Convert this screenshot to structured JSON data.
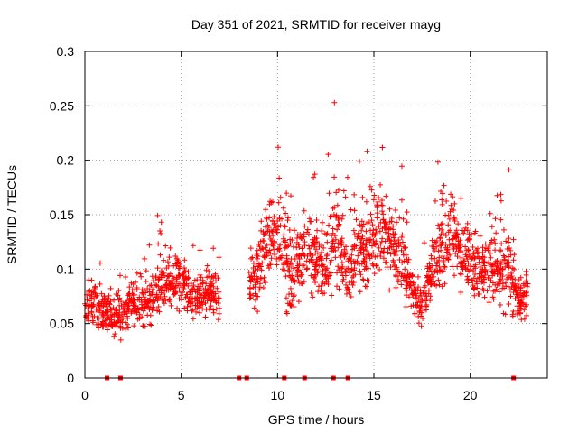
{
  "chart_data": {
    "type": "scatter",
    "title": "Day 351 of 2021, SRMTID for receiver mayg",
    "xlabel": "GPS time / hours",
    "ylabel": "SRMTID / TECUs",
    "xlim": [
      0,
      24
    ],
    "ylim": [
      0,
      0.3
    ],
    "xticks": [
      0,
      5,
      10,
      15,
      20
    ],
    "xtick_labels": [
      "0",
      "5",
      "10",
      "15",
      "20"
    ],
    "yticks": [
      0,
      0.05,
      0.1,
      0.15,
      0.2,
      0.25,
      0.3
    ],
    "ytick_labels": [
      "0",
      "0.05",
      "0.1",
      "0.15",
      "0.2",
      "0.25",
      "0.3"
    ],
    "grid": true,
    "marker": "+",
    "color": "#ff0000",
    "envelope": {
      "x": [
        0,
        0.5,
        1,
        1.5,
        2,
        2.5,
        3,
        3.5,
        4,
        4.5,
        5,
        5.5,
        6,
        6.5,
        7,
        7.5,
        8,
        8.5,
        9,
        9.5,
        10,
        10.5,
        11,
        11.5,
        12,
        12.5,
        13,
        13.5,
        14,
        14.5,
        15,
        15.5,
        16,
        16.5,
        17,
        17.5,
        18,
        18.5,
        19,
        19.5,
        20,
        20.5,
        21,
        21.5,
        22,
        22.5,
        23
      ],
      "center": [
        0.065,
        0.07,
        0.06,
        0.055,
        0.06,
        0.07,
        0.065,
        0.07,
        0.09,
        0.085,
        0.09,
        0.07,
        0.075,
        0.08,
        0.075,
        null,
        null,
        0.085,
        0.095,
        0.13,
        0.14,
        0.1,
        0.1,
        0.12,
        0.11,
        0.1,
        0.14,
        0.1,
        0.11,
        0.12,
        0.13,
        0.14,
        0.12,
        0.11,
        0.08,
        0.06,
        0.1,
        0.12,
        0.13,
        0.115,
        0.11,
        0.1,
        0.1,
        0.1,
        0.1,
        0.07,
        0.08
      ],
      "spread": [
        0.025,
        0.03,
        0.02,
        0.025,
        0.025,
        0.025,
        0.025,
        0.03,
        0.035,
        0.03,
        0.035,
        0.035,
        0.03,
        0.03,
        0.03,
        null,
        null,
        0.03,
        0.04,
        0.06,
        0.05,
        0.05,
        0.05,
        0.055,
        0.05,
        0.045,
        0.07,
        0.045,
        0.05,
        0.05,
        0.06,
        0.06,
        0.05,
        0.045,
        0.04,
        0.03,
        0.045,
        0.05,
        0.05,
        0.04,
        0.045,
        0.04,
        0.05,
        0.045,
        0.05,
        0.03,
        0.035
      ],
      "points_per_hour": 90
    },
    "zero_markers_x": [
      1.15,
      1.85,
      8.0,
      8.4,
      10.35,
      11.4,
      12.9,
      13.65,
      22.25
    ]
  }
}
